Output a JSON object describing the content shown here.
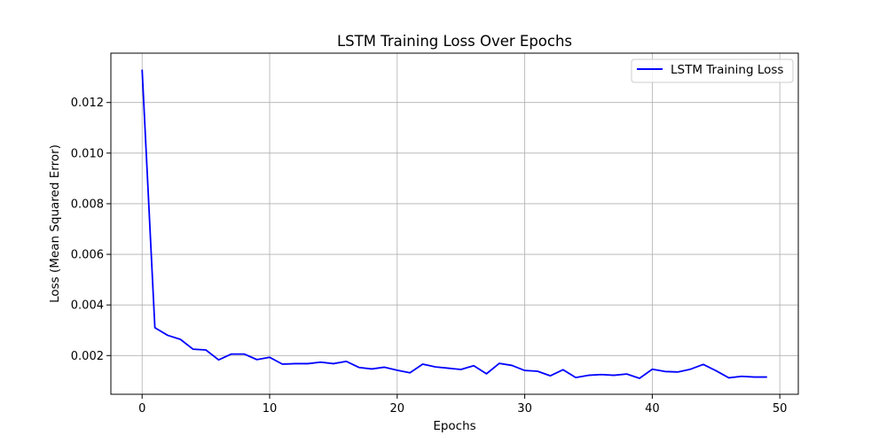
{
  "chart_data": {
    "type": "line",
    "title": "LSTM Training Loss Over Epochs",
    "xlabel": "Epochs",
    "ylabel": "Loss (Mean Squared Error)",
    "xlim": [
      -2.45,
      51.45
    ],
    "ylim": [
      0.00047,
      0.01395
    ],
    "x_ticks": [
      0,
      10,
      20,
      30,
      40,
      50
    ],
    "x_tick_labels": [
      "0",
      "10",
      "20",
      "30",
      "40",
      "50"
    ],
    "y_ticks": [
      0.002,
      0.004,
      0.006,
      0.008,
      0.01,
      0.012
    ],
    "y_tick_labels": [
      "0.002",
      "0.004",
      "0.006",
      "0.008",
      "0.010",
      "0.012"
    ],
    "grid": true,
    "legend_position": "top-right",
    "series": [
      {
        "name": "LSTM Training Loss",
        "color": "#0000ff",
        "x": [
          0,
          1,
          2,
          3,
          4,
          5,
          6,
          7,
          8,
          9,
          10,
          11,
          12,
          13,
          14,
          15,
          16,
          17,
          18,
          19,
          20,
          21,
          22,
          23,
          24,
          25,
          26,
          27,
          28,
          29,
          30,
          31,
          32,
          33,
          34,
          35,
          36,
          37,
          38,
          39,
          40,
          41,
          42,
          43,
          44,
          45,
          46,
          47,
          48,
          49
        ],
        "values": [
          0.0133,
          0.0031,
          0.0028,
          0.00264,
          0.00225,
          0.00222,
          0.00183,
          0.00206,
          0.00206,
          0.00184,
          0.00193,
          0.00166,
          0.00168,
          0.00168,
          0.00174,
          0.00168,
          0.00177,
          0.00153,
          0.00147,
          0.00154,
          0.00142,
          0.00132,
          0.00166,
          0.00155,
          0.0015,
          0.00145,
          0.0016,
          0.00128,
          0.00169,
          0.00161,
          0.00141,
          0.00138,
          0.0012,
          0.00144,
          0.00113,
          0.00122,
          0.00125,
          0.00122,
          0.00127,
          0.0011,
          0.00146,
          0.00137,
          0.00135,
          0.00146,
          0.00165,
          0.0014,
          0.00112,
          0.00118,
          0.00115,
          0.00115
        ]
      }
    ]
  }
}
